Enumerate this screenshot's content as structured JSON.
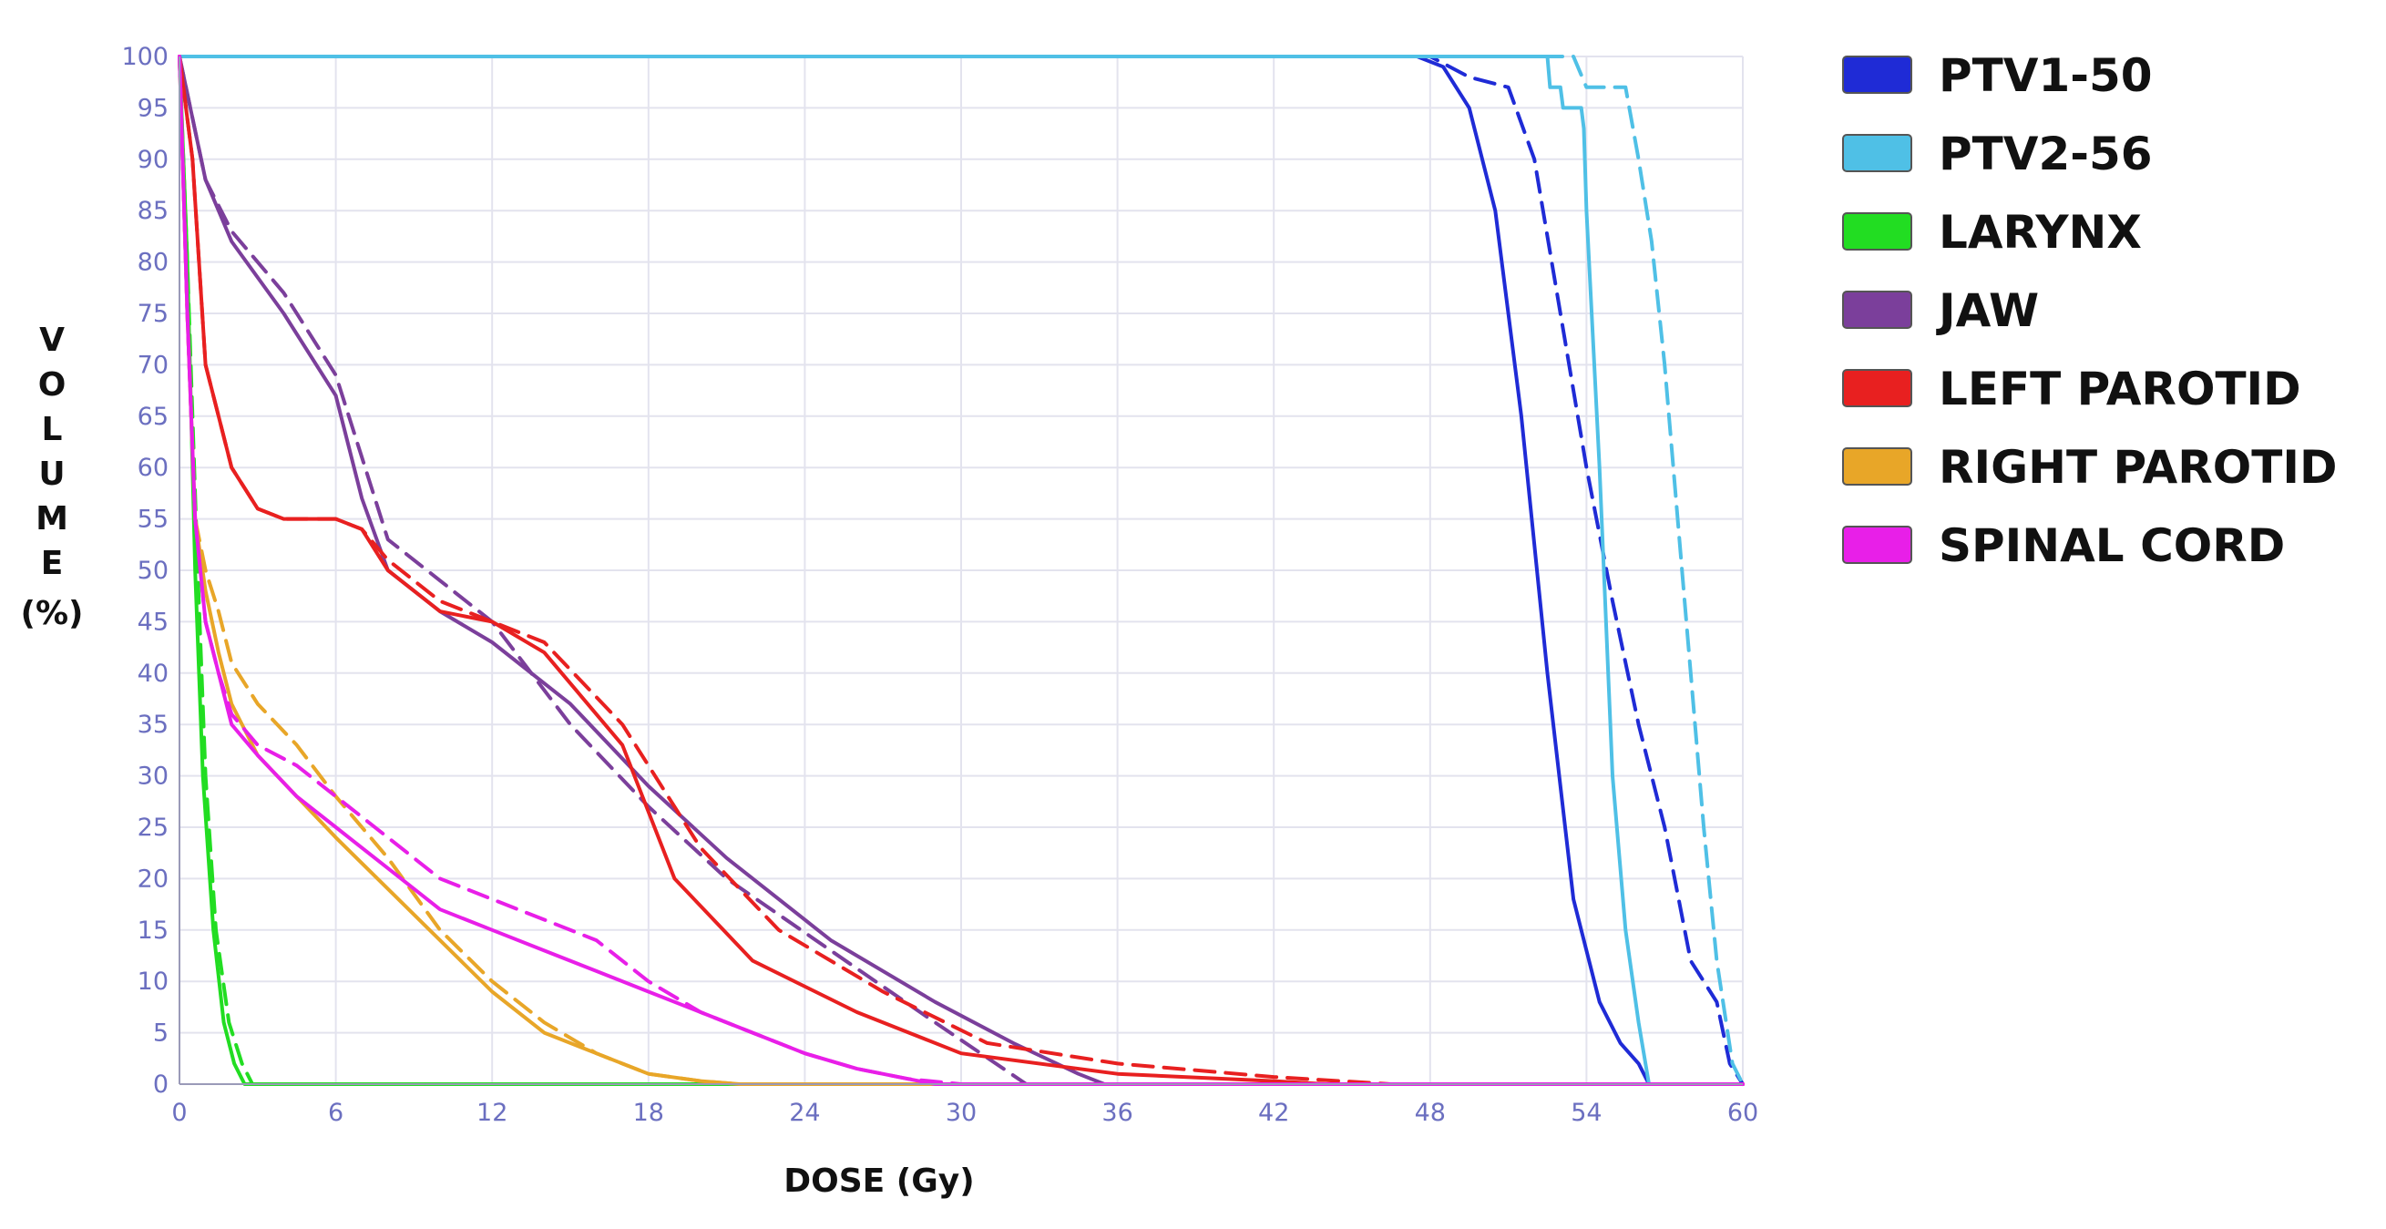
{
  "chart_data": {
    "type": "line",
    "title": "",
    "xlabel": "DOSE (Gy)",
    "ylabel": "VOLUME (%)",
    "xlim": [
      0,
      60
    ],
    "ylim": [
      0,
      100
    ],
    "x_ticks": [
      "0",
      "6",
      "12",
      "18",
      "24",
      "30",
      "36",
      "42",
      "48",
      "54",
      "60"
    ],
    "y_ticks": [
      "0",
      "5",
      "10",
      "15",
      "20",
      "25",
      "30",
      "35",
      "40",
      "45",
      "50",
      "55",
      "60",
      "65",
      "70",
      "75",
      "80",
      "85",
      "90",
      "95",
      "100"
    ],
    "grid": true,
    "legend_position": "right",
    "legend": [
      {
        "label": "PTV1-50",
        "color": "#1f2bd6"
      },
      {
        "label": "PTV2-56",
        "color": "#4fc0e6"
      },
      {
        "label": "LARYNX",
        "color": "#22dd22"
      },
      {
        "label": "JAW",
        "color": "#7b3f9b"
      },
      {
        "label": "LEFT PAROTID",
        "color": "#e82020"
      },
      {
        "label": "RIGHT PAROTID",
        "color": "#e8a628"
      },
      {
        "label": "SPINAL CORD",
        "color": "#e81fe8"
      }
    ],
    "series": [
      {
        "name": "PTV1-50",
        "style": "solid",
        "color": "#1f2bd6",
        "x": [
          0,
          47.5,
          48.5,
          49.5,
          50.5,
          51.5,
          52.5,
          53.5,
          54.5,
          55.3,
          56.0,
          56.4,
          60
        ],
        "y": [
          100,
          100,
          99,
          95,
          85,
          65,
          40,
          18,
          8,
          4,
          2,
          0,
          0
        ]
      },
      {
        "name": "PTV1-50",
        "style": "dashed",
        "color": "#1f2bd6",
        "x": [
          0,
          48.0,
          49.5,
          51.0,
          52.0,
          53.0,
          54.0,
          55.0,
          56.0,
          57.0,
          58.0,
          59.0,
          59.5,
          60
        ],
        "y": [
          100,
          100,
          98,
          97,
          90,
          75,
          60,
          47,
          35,
          25,
          12,
          8,
          2,
          0
        ]
      },
      {
        "name": "PTV2-56",
        "style": "solid",
        "color": "#4fc0e6",
        "x": [
          0,
          52.5,
          52.6,
          53.0,
          53.1,
          53.8,
          53.9,
          54.0,
          54.5,
          55.0,
          55.5,
          56.0,
          56.4,
          60
        ],
        "y": [
          100,
          100,
          97,
          97,
          95,
          95,
          93,
          85,
          60,
          30,
          15,
          6,
          0,
          0
        ]
      },
      {
        "name": "PTV2-56",
        "style": "dashed",
        "color": "#4fc0e6",
        "x": [
          0,
          53.5,
          54.0,
          55.5,
          56.0,
          56.5,
          57.0,
          57.5,
          58.0,
          58.5,
          59.0,
          59.6,
          60
        ],
        "y": [
          100,
          100,
          97,
          97,
          90,
          82,
          70,
          55,
          40,
          25,
          12,
          2,
          0
        ]
      },
      {
        "name": "LARYNX",
        "style": "solid",
        "color": "#22dd22",
        "x": [
          0,
          0.3,
          0.6,
          0.9,
          1.3,
          1.7,
          2.1,
          2.5,
          60
        ],
        "y": [
          100,
          80,
          50,
          30,
          15,
          6,
          2,
          0,
          0
        ]
      },
      {
        "name": "LARYNX",
        "style": "dashed",
        "color": "#22dd22",
        "x": [
          0,
          0.3,
          0.7,
          1.0,
          1.4,
          1.9,
          2.4,
          2.8,
          60
        ],
        "y": [
          100,
          80,
          50,
          30,
          15,
          6,
          2,
          0,
          0
        ]
      },
      {
        "name": "JAW",
        "style": "solid",
        "color": "#7b3f9b",
        "x": [
          0,
          1.0,
          2.0,
          4.0,
          6.0,
          7.0,
          8.0,
          10.0,
          12.0,
          15.0,
          18.0,
          21.0,
          25.0,
          29.0,
          32.0,
          34.5,
          35.5,
          60
        ],
        "y": [
          100,
          88,
          82,
          75,
          67,
          57,
          50,
          46,
          43,
          37,
          29,
          22,
          14,
          8,
          4,
          1,
          0,
          0
        ]
      },
      {
        "name": "JAW",
        "style": "dashed",
        "color": "#7b3f9b",
        "x": [
          0,
          1.0,
          2.0,
          4.0,
          6.0,
          7.0,
          8.0,
          10.0,
          12.0,
          15.0,
          18.0,
          21.0,
          25.0,
          29.0,
          32.5,
          60
        ],
        "y": [
          100,
          88,
          83,
          77,
          69,
          61,
          53,
          49,
          45,
          35,
          27,
          20,
          13,
          6,
          0,
          0
        ]
      },
      {
        "name": "LEFT PAROTID",
        "style": "solid",
        "color": "#e82020",
        "x": [
          0,
          0.5,
          1.0,
          1.5,
          2.0,
          3.0,
          4.0,
          6.0,
          7.0,
          8.0,
          10.0,
          12.0,
          14.0,
          17.0,
          19.0,
          22.0,
          26.0,
          30.0,
          36.0,
          42.0,
          44.0,
          60
        ],
        "y": [
          100,
          90,
          70,
          65,
          60,
          56,
          55,
          55,
          54,
          50,
          46,
          45,
          42,
          33,
          20,
          12,
          7,
          3,
          1,
          0.3,
          0,
          0
        ]
      },
      {
        "name": "LEFT PAROTID",
        "style": "dashed",
        "color": "#e82020",
        "x": [
          0,
          0.5,
          1.0,
          1.5,
          2.0,
          3.0,
          4.0,
          6.0,
          7.0,
          8.0,
          10.0,
          12.0,
          14.0,
          17.0,
          20.0,
          23.0,
          27.0,
          31.0,
          36.0,
          42.0,
          46.5,
          60
        ],
        "y": [
          100,
          90,
          70,
          65,
          60,
          56,
          55,
          55,
          54,
          51,
          47,
          45,
          43,
          35,
          23,
          15,
          9,
          4,
          2,
          0.7,
          0,
          0
        ]
      },
      {
        "name": "RIGHT PAROTID",
        "style": "solid",
        "color": "#e8a628",
        "x": [
          0,
          0.3,
          0.6,
          1.0,
          1.5,
          2.0,
          3.0,
          4.5,
          6.0,
          8.0,
          10.0,
          12.0,
          14.0,
          16.0,
          18.0,
          20.0,
          21.5,
          60
        ],
        "y": [
          100,
          75,
          55,
          48,
          42,
          37,
          32,
          28,
          24,
          19,
          14,
          9,
          5,
          3,
          1,
          0.3,
          0,
          0
        ]
      },
      {
        "name": "RIGHT PAROTID",
        "style": "dashed",
        "color": "#e8a628",
        "x": [
          0,
          0.3,
          0.6,
          1.0,
          1.5,
          2.0,
          3.0,
          4.5,
          6.0,
          8.0,
          10.0,
          12.0,
          14.0,
          16.0,
          18.0,
          20.0,
          21.5,
          60
        ],
        "y": [
          100,
          75,
          55,
          50,
          46,
          41,
          37,
          33,
          28,
          22,
          15,
          10,
          6,
          3,
          1,
          0.3,
          0,
          0
        ]
      },
      {
        "name": "SPINAL CORD",
        "style": "solid",
        "color": "#e81fe8",
        "x": [
          0,
          0.3,
          0.6,
          1.0,
          1.5,
          2.0,
          3.0,
          4.5,
          6.0,
          8.0,
          10.0,
          12.0,
          14.0,
          16.0,
          18.0,
          20.0,
          22.0,
          24.0,
          26.0,
          28.0,
          29.0,
          60
        ],
        "y": [
          100,
          75,
          55,
          45,
          40,
          35,
          32,
          28,
          25,
          21,
          17,
          15,
          13,
          11,
          9,
          7,
          5,
          3,
          1.5,
          0.5,
          0,
          0
        ]
      },
      {
        "name": "SPINAL CORD",
        "style": "dashed",
        "color": "#e81fe8",
        "x": [
          0,
          0.3,
          0.6,
          1.0,
          1.5,
          2.0,
          3.0,
          4.5,
          6.0,
          8.0,
          10.0,
          12.0,
          14.0,
          16.0,
          18.0,
          20.0,
          22.0,
          24.0,
          26.0,
          28.0,
          30.0,
          60
        ],
        "y": [
          100,
          75,
          55,
          45,
          40,
          36,
          33,
          31,
          28,
          24,
          20,
          18,
          16,
          14,
          10,
          7,
          5,
          3,
          1.5,
          0.5,
          0,
          0
        ]
      }
    ]
  }
}
